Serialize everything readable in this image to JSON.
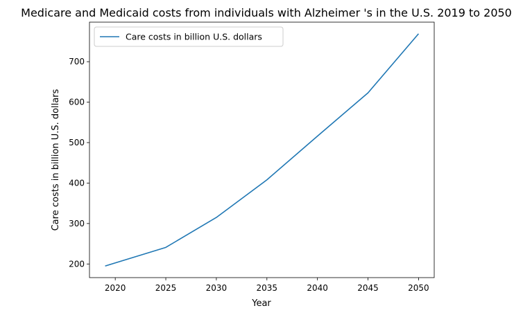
{
  "chart_data": {
    "type": "line",
    "title": "Medicare and Medicaid costs from individuals with Alzheimer 's in the U.S. 2019 to 2050",
    "xlabel": "Year",
    "ylabel": "Care costs in billion U.S. dollars",
    "x": [
      2019,
      2025,
      2030,
      2035,
      2040,
      2045,
      2050
    ],
    "series": [
      {
        "name": "Care costs in billion U.S. dollars",
        "values": [
          195,
          241,
          315,
          408,
          516,
          623,
          769
        ],
        "color": "#1f77b4"
      }
    ],
    "xlim": [
      2017.45,
      2051.55
    ],
    "ylim": [
      166.3,
      797.7
    ],
    "xticks": [
      2020,
      2025,
      2030,
      2035,
      2040,
      2045,
      2050
    ],
    "yticks": [
      200,
      300,
      400,
      500,
      600,
      700
    ],
    "grid": false,
    "legend_position": "upper-left"
  }
}
